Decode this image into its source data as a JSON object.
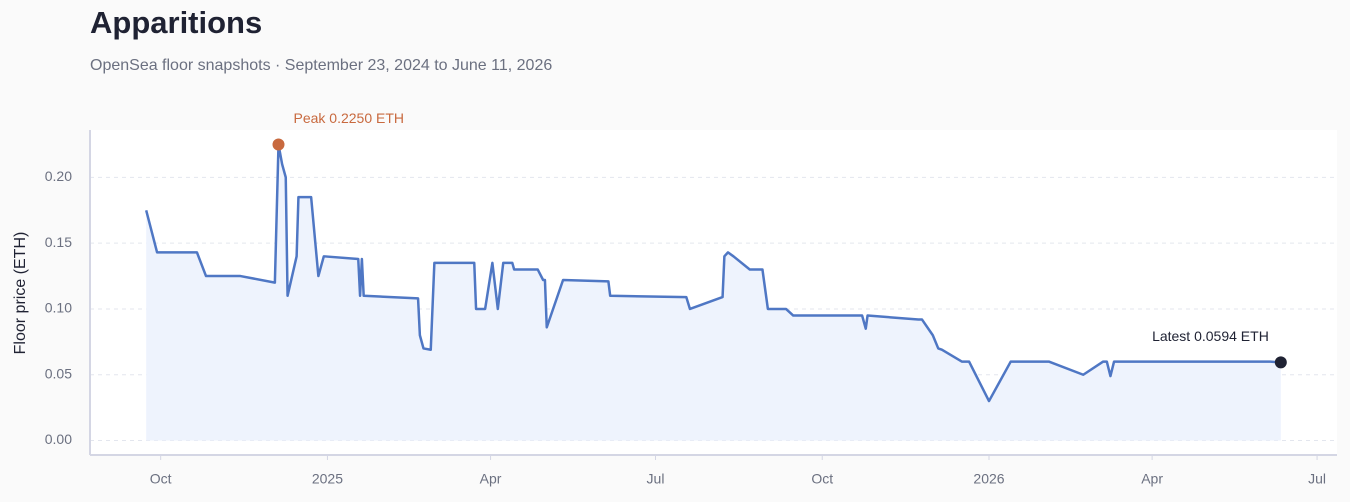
{
  "chart_data": {
    "type": "line",
    "title": "Apparitions",
    "subtitle": "OpenSea floor snapshots · September 23, 2024 to June 11, 2026",
    "y_label": "Floor price (ETH)",
    "x": [
      "2024-09-23",
      "2024-09-29",
      "2024-10-21",
      "2024-10-26",
      "2024-11-14",
      "2024-12-03",
      "2024-12-05",
      "2024-12-07",
      "2024-12-09",
      "2024-12-10",
      "2024-12-15",
      "2024-12-16",
      "2024-12-23",
      "2024-12-27",
      "2024-12-30",
      "2025-01-18",
      "2025-01-19",
      "2025-01-20",
      "2025-01-21",
      "2025-02-20",
      "2025-02-21",
      "2025-02-23",
      "2025-02-27",
      "2025-03-01",
      "2025-03-23",
      "2025-03-24",
      "2025-03-29",
      "2025-04-02",
      "2025-04-05",
      "2025-04-08",
      "2025-04-13",
      "2025-04-14",
      "2025-04-27",
      "2025-04-30",
      "2025-05-01",
      "2025-05-02",
      "2025-05-11",
      "2025-06-05",
      "2025-06-06",
      "2025-07-18",
      "2025-07-20",
      "2025-08-07",
      "2025-08-08",
      "2025-08-10",
      "2025-08-13",
      "2025-08-22",
      "2025-08-29",
      "2025-09-01",
      "2025-09-11",
      "2025-09-15",
      "2025-10-23",
      "2025-10-25",
      "2025-10-26",
      "2025-11-23",
      "2025-11-25",
      "2025-12-01",
      "2025-12-04",
      "2025-12-06",
      "2025-12-17",
      "2025-12-21",
      "2026-01-01",
      "2026-01-13",
      "2026-02-03",
      "2026-02-22",
      "2026-03-05",
      "2026-03-07",
      "2026-03-09",
      "2026-03-11",
      "2026-06-05",
      "2026-06-11"
    ],
    "series": [
      {
        "name": "Floor price",
        "color": "#4f77c4",
        "fill": "#eef3fd",
        "values": [
          0.175,
          0.143,
          0.143,
          0.125,
          0.125,
          0.12,
          0.225,
          0.21,
          0.2,
          0.11,
          0.14,
          0.185,
          0.185,
          0.125,
          0.14,
          0.138,
          0.11,
          0.138,
          0.11,
          0.108,
          0.08,
          0.07,
          0.069,
          0.135,
          0.135,
          0.1,
          0.1,
          0.135,
          0.1,
          0.135,
          0.135,
          0.13,
          0.13,
          0.122,
          0.122,
          0.086,
          0.122,
          0.121,
          0.11,
          0.109,
          0.1,
          0.109,
          0.14,
          0.143,
          0.14,
          0.13,
          0.13,
          0.1,
          0.1,
          0.095,
          0.095,
          0.085,
          0.095,
          0.092,
          0.092,
          0.08,
          0.07,
          0.069,
          0.06,
          0.06,
          0.03,
          0.06,
          0.06,
          0.05,
          0.06,
          0.06,
          0.049,
          0.06,
          0.06,
          0.0594
        ]
      }
    ],
    "annotations": [
      {
        "text": "Peak 0.2250 ETH",
        "index": 6,
        "color": "#c8693e"
      },
      {
        "text": "Latest 0.0594 ETH",
        "index": 69,
        "color": "#1f2233"
      }
    ],
    "xlim": [
      "2024-08-23",
      "2026-07-12"
    ],
    "xticks": [
      {
        "value": "2024-10-01",
        "label": "Oct"
      },
      {
        "value": "2025-01-01",
        "label": "2025"
      },
      {
        "value": "2025-04-01",
        "label": "Apr"
      },
      {
        "value": "2025-07-01",
        "label": "Jul"
      },
      {
        "value": "2025-10-01",
        "label": "Oct"
      },
      {
        "value": "2026-01-01",
        "label": "2026"
      },
      {
        "value": "2026-04-01",
        "label": "Apr"
      },
      {
        "value": "2026-07-01",
        "label": "Jul"
      }
    ],
    "ylim": [
      -0.011,
      0.236
    ],
    "yticks": [
      {
        "value": 0,
        "label": "0.00"
      },
      {
        "value": 0.05,
        "label": "0.05"
      },
      {
        "value": 0.1,
        "label": "0.10"
      },
      {
        "value": 0.15,
        "label": "0.15"
      },
      {
        "value": 0.2,
        "label": "0.20"
      }
    ],
    "grid": true
  }
}
